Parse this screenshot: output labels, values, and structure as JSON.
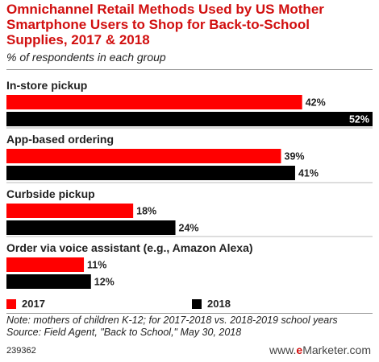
{
  "chart_data": {
    "type": "bar",
    "orientation": "horizontal",
    "title": "Omnichannel Retail Methods Used by US Mother Smartphone Users to Shop for Back-to-School Supplies, 2017 & 2018",
    "subtitle": "% of respondents in each group",
    "categories": [
      "In-store pickup",
      "App-based ordering",
      "Curbside pickup",
      "Order via voice assistant (e.g., Amazon Alexa)"
    ],
    "series": [
      {
        "name": "2017",
        "color": "#ff0000",
        "values": [
          42,
          39,
          18,
          11
        ]
      },
      {
        "name": "2018",
        "color": "#000000",
        "values": [
          52,
          41,
          24,
          12
        ]
      }
    ],
    "value_suffix": "%",
    "xlim": [
      0,
      52
    ],
    "grid": false,
    "legend_position": "bottom"
  },
  "note": "Note: mothers of children K-12; for 2017-2018 vs. 2018-2019 school years",
  "source": "Source: Field Agent, \"Back to School,\" May 30, 2018",
  "chart_id": "239362",
  "brand": {
    "prefix": "www.",
    "e": "e",
    "rest": "Marketer",
    "suffix": ".com"
  }
}
